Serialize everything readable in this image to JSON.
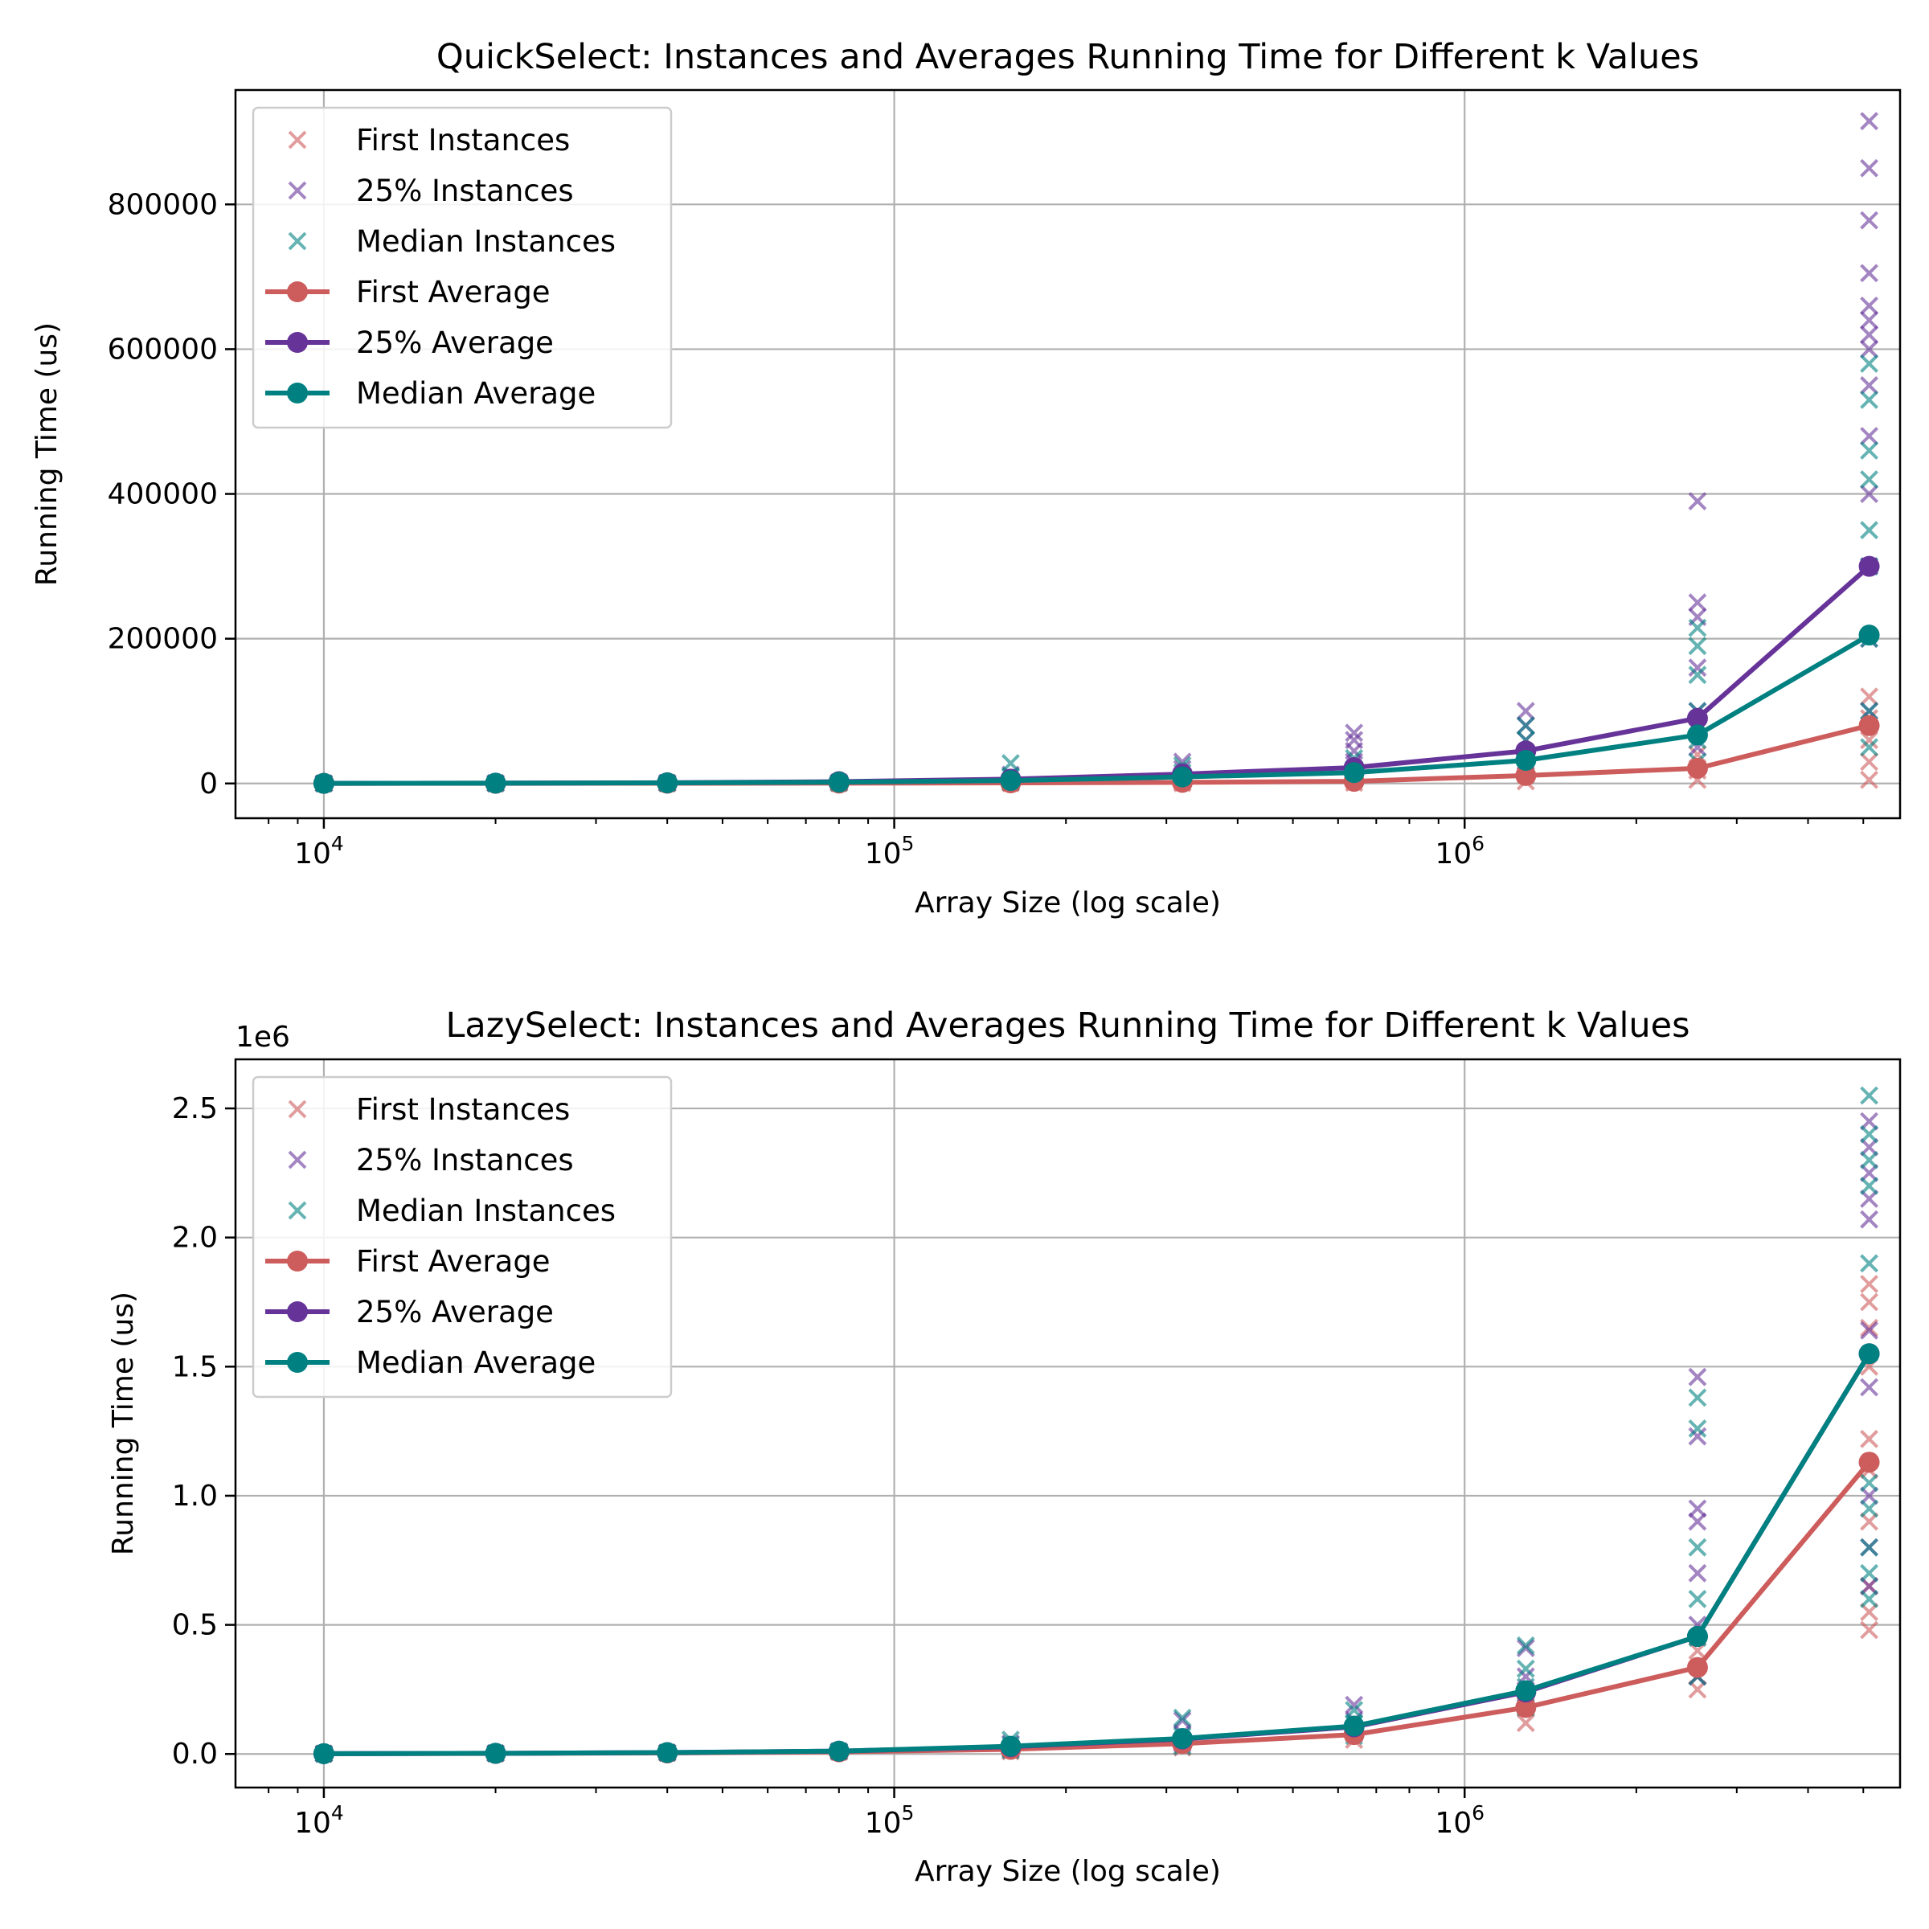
{
  "chart_data": [
    {
      "type": "scatter",
      "title": "QuickSelect: Instances and Averages Running Time for Different k Values",
      "xlabel": "Array Size (log scale)",
      "ylabel": "Running Time (us)",
      "x_scale": "log",
      "xlim": [
        7000,
        5800000
      ],
      "ylim": [
        -48000,
        958000
      ],
      "y_offset_label": "",
      "y_ticks": [
        0,
        200000,
        400000,
        600000,
        800000
      ],
      "y_tick_labels": [
        "0",
        "200000",
        "400000",
        "600000",
        "800000"
      ],
      "x_ticks": [
        10000,
        100000,
        1000000
      ],
      "x_tick_bases": [
        "10",
        "10",
        "10"
      ],
      "x_tick_exponents": [
        "4",
        "5",
        "6"
      ],
      "grid": true,
      "legend_placement": "top-left",
      "x": [
        10000,
        20000,
        40000,
        80000,
        160000,
        320000,
        640000,
        1280000,
        2560000,
        5120000
      ],
      "series": [
        {
          "name": "First Instances",
          "kind": "scatter",
          "marker": "x",
          "color": "#cd5c5c",
          "opacity": 0.6,
          "points": [
            [
              10000,
              0
            ],
            [
              20000,
              0
            ],
            [
              40000,
              0
            ],
            [
              80000,
              200
            ],
            [
              160000,
              300
            ],
            [
              160000,
              1500
            ],
            [
              320000,
              500
            ],
            [
              320000,
              3000
            ],
            [
              640000,
              1000
            ],
            [
              640000,
              5000
            ],
            [
              1280000,
              3000
            ],
            [
              1280000,
              12000
            ],
            [
              1280000,
              25000
            ],
            [
              2560000,
              5000
            ],
            [
              2560000,
              18000
            ],
            [
              2560000,
              40000
            ],
            [
              5120000,
              5000
            ],
            [
              5120000,
              30000
            ],
            [
              5120000,
              60000
            ],
            [
              5120000,
              90000
            ],
            [
              5120000,
              120000
            ]
          ]
        },
        {
          "name": "25% Instances",
          "kind": "scatter",
          "marker": "x",
          "color": "#663399",
          "opacity": 0.6,
          "points": [
            [
              10000,
              0
            ],
            [
              20000,
              300
            ],
            [
              40000,
              800
            ],
            [
              80000,
              1500
            ],
            [
              160000,
              3000
            ],
            [
              160000,
              12000
            ],
            [
              320000,
              8000
            ],
            [
              320000,
              20000
            ],
            [
              320000,
              30000
            ],
            [
              640000,
              12000
            ],
            [
              640000,
              30000
            ],
            [
              640000,
              45000
            ],
            [
              640000,
              60000
            ],
            [
              640000,
              70000
            ],
            [
              1280000,
              30000
            ],
            [
              1280000,
              60000
            ],
            [
              1280000,
              80000
            ],
            [
              1280000,
              100000
            ],
            [
              2560000,
              50000
            ],
            [
              2560000,
              100000
            ],
            [
              2560000,
              160000
            ],
            [
              2560000,
              230000
            ],
            [
              2560000,
              250000
            ],
            [
              2560000,
              390000
            ],
            [
              5120000,
              100000
            ],
            [
              5120000,
              200000
            ],
            [
              5120000,
              300000
            ],
            [
              5120000,
              400000
            ],
            [
              5120000,
              480000
            ],
            [
              5120000,
              550000
            ],
            [
              5120000,
              600000
            ],
            [
              5120000,
              620000
            ],
            [
              5120000,
              640000
            ],
            [
              5120000,
              660000
            ],
            [
              5120000,
              705000
            ],
            [
              5120000,
              778000
            ],
            [
              5120000,
              850000
            ],
            [
              5120000,
              915000
            ]
          ]
        },
        {
          "name": "Median Instances",
          "kind": "scatter",
          "marker": "x",
          "color": "#008080",
          "opacity": 0.6,
          "points": [
            [
              10000,
              0
            ],
            [
              20000,
              200
            ],
            [
              40000,
              500
            ],
            [
              80000,
              1000
            ],
            [
              160000,
              2000
            ],
            [
              160000,
              10000
            ],
            [
              160000,
              28000
            ],
            [
              320000,
              5000
            ],
            [
              320000,
              15000
            ],
            [
              320000,
              25000
            ],
            [
              640000,
              8000
            ],
            [
              640000,
              20000
            ],
            [
              640000,
              35000
            ],
            [
              1280000,
              20000
            ],
            [
              1280000,
              40000
            ],
            [
              1280000,
              60000
            ],
            [
              1280000,
              80000
            ],
            [
              2560000,
              30000
            ],
            [
              2560000,
              60000
            ],
            [
              2560000,
              100000
            ],
            [
              2560000,
              150000
            ],
            [
              2560000,
              190000
            ],
            [
              2560000,
              215000
            ],
            [
              5120000,
              50000
            ],
            [
              5120000,
              100000
            ],
            [
              5120000,
              200000
            ],
            [
              5120000,
              300000
            ],
            [
              5120000,
              350000
            ],
            [
              5120000,
              420000
            ],
            [
              5120000,
              460000
            ],
            [
              5120000,
              530000
            ],
            [
              5120000,
              580000
            ]
          ]
        },
        {
          "name": "First Average",
          "kind": "line",
          "color": "#cd5c5c",
          "values": [
            100,
            200,
            300,
            500,
            800,
            1500,
            3000,
            11000,
            21000,
            80000
          ]
        },
        {
          "name": "25% Average",
          "kind": "line",
          "color": "#663399",
          "values": [
            200,
            500,
            1000,
            2500,
            6000,
            13000,
            22000,
            45000,
            90000,
            300000
          ]
        },
        {
          "name": "Median Average",
          "kind": "line",
          "color": "#008080",
          "values": [
            150,
            400,
            800,
            1800,
            4000,
            9000,
            15000,
            32000,
            67000,
            205000
          ]
        }
      ]
    },
    {
      "type": "scatter",
      "title": "LazySelect: Instances and Averages Running Time for Different k Values",
      "xlabel": "Array Size (log scale)",
      "ylabel": "Running Time (us)",
      "x_scale": "log",
      "xlim": [
        7000,
        5800000
      ],
      "ylim": [
        -130000,
        2690000
      ],
      "y_offset_label": "1e6",
      "y_ticks": [
        0,
        500000,
        1000000,
        1500000,
        2000000,
        2500000
      ],
      "y_tick_labels": [
        "0.0",
        "0.5",
        "1.0",
        "1.5",
        "2.0",
        "2.5"
      ],
      "x_ticks": [
        10000,
        100000,
        1000000
      ],
      "x_tick_bases": [
        "10",
        "10",
        "10"
      ],
      "x_tick_exponents": [
        "4",
        "5",
        "6"
      ],
      "grid": true,
      "legend_placement": "top-left",
      "x": [
        10000,
        20000,
        40000,
        80000,
        160000,
        320000,
        640000,
        1280000,
        2560000,
        5120000
      ],
      "series": [
        {
          "name": "First Instances",
          "kind": "scatter",
          "marker": "x",
          "color": "#cd5c5c",
          "opacity": 0.6,
          "points": [
            [
              10000,
              1000
            ],
            [
              20000,
              2000
            ],
            [
              40000,
              4000
            ],
            [
              80000,
              8000
            ],
            [
              160000,
              10000
            ],
            [
              160000,
              20000
            ],
            [
              320000,
              25000
            ],
            [
              320000,
              45000
            ],
            [
              640000,
              55000
            ],
            [
              640000,
              90000
            ],
            [
              1280000,
              120000
            ],
            [
              1280000,
              180000
            ],
            [
              1280000,
              240000
            ],
            [
              2560000,
              250000
            ],
            [
              2560000,
              300000
            ],
            [
              2560000,
              400000
            ],
            [
              5120000,
              480000
            ],
            [
              5120000,
              550000
            ],
            [
              5120000,
              650000
            ],
            [
              5120000,
              900000
            ],
            [
              5120000,
              1100000
            ],
            [
              5120000,
              1220000
            ],
            [
              5120000,
              1500000
            ],
            [
              5120000,
              1650000
            ],
            [
              5120000,
              1750000
            ],
            [
              5120000,
              1820000
            ]
          ]
        },
        {
          "name": "25% Instances",
          "kind": "scatter",
          "marker": "x",
          "color": "#663399",
          "opacity": 0.6,
          "points": [
            [
              10000,
              1000
            ],
            [
              20000,
              2500
            ],
            [
              40000,
              5000
            ],
            [
              80000,
              10000
            ],
            [
              160000,
              20000
            ],
            [
              160000,
              40000
            ],
            [
              320000,
              40000
            ],
            [
              320000,
              80000
            ],
            [
              320000,
              130000
            ],
            [
              640000,
              80000
            ],
            [
              640000,
              130000
            ],
            [
              640000,
              190000
            ],
            [
              1280000,
              200000
            ],
            [
              1280000,
              300000
            ],
            [
              1280000,
              410000
            ],
            [
              2560000,
              300000
            ],
            [
              2560000,
              500000
            ],
            [
              2560000,
              700000
            ],
            [
              2560000,
              900000
            ],
            [
              2560000,
              950000
            ],
            [
              2560000,
              1230000
            ],
            [
              2560000,
              1460000
            ],
            [
              5120000,
              650000
            ],
            [
              5120000,
              800000
            ],
            [
              5120000,
              1000000
            ],
            [
              5120000,
              1420000
            ],
            [
              5120000,
              1640000
            ],
            [
              5120000,
              2070000
            ],
            [
              5120000,
              2150000
            ],
            [
              5120000,
              2250000
            ],
            [
              5120000,
              2350000
            ],
            [
              5120000,
              2450000
            ]
          ]
        },
        {
          "name": "Median Instances",
          "kind": "scatter",
          "marker": "x",
          "color": "#008080",
          "opacity": 0.6,
          "points": [
            [
              10000,
              1000
            ],
            [
              20000,
              2500
            ],
            [
              40000,
              5000
            ],
            [
              80000,
              10000
            ],
            [
              160000,
              15000
            ],
            [
              160000,
              35000
            ],
            [
              160000,
              55000
            ],
            [
              320000,
              30000
            ],
            [
              320000,
              70000
            ],
            [
              320000,
              140000
            ],
            [
              640000,
              70000
            ],
            [
              640000,
              120000
            ],
            [
              640000,
              170000
            ],
            [
              1280000,
              180000
            ],
            [
              1280000,
              260000
            ],
            [
              1280000,
              330000
            ],
            [
              1280000,
              420000
            ],
            [
              2560000,
              300000
            ],
            [
              2560000,
              450000
            ],
            [
              2560000,
              600000
            ],
            [
              2560000,
              800000
            ],
            [
              2560000,
              1260000
            ],
            [
              2560000,
              1380000
            ],
            [
              5120000,
              600000
            ],
            [
              5120000,
              700000
            ],
            [
              5120000,
              800000
            ],
            [
              5120000,
              950000
            ],
            [
              5120000,
              1050000
            ],
            [
              5120000,
              1900000
            ],
            [
              5120000,
              2200000
            ],
            [
              5120000,
              2300000
            ],
            [
              5120000,
              2400000
            ],
            [
              5120000,
              2550000
            ]
          ]
        },
        {
          "name": "First Average",
          "kind": "line",
          "color": "#cd5c5c",
          "values": [
            1000,
            2000,
            4000,
            8000,
            18000,
            40000,
            75000,
            180000,
            335000,
            1130000
          ]
        },
        {
          "name": "25% Average",
          "kind": "line",
          "color": "#663399",
          "values": [
            1200,
            2500,
            5500,
            11000,
            28000,
            58000,
            105000,
            240000,
            455000,
            1550000
          ]
        },
        {
          "name": "Median Average",
          "kind": "line",
          "color": "#008080",
          "values": [
            1200,
            2500,
            5500,
            11000,
            30000,
            60000,
            108000,
            245000,
            455000,
            1550000
          ]
        }
      ]
    }
  ]
}
